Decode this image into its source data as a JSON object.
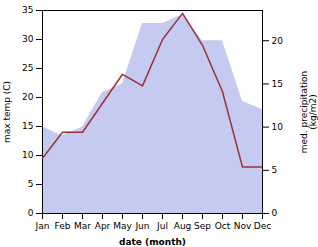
{
  "chart_data": {
    "type": "line",
    "xlabel": "date (month)",
    "ylabel": "max temp (C)",
    "y2label": "med. precipitation\n(kg/m2)",
    "categories": [
      "Jan",
      "Feb",
      "Mar",
      "Apr",
      "May",
      "Jun",
      "Jul",
      "Aug",
      "Sep",
      "Oct",
      "Nov",
      "Dec"
    ],
    "series": [
      {
        "type": "area",
        "axis": "y2",
        "color": "#c5caf0",
        "values": [
          10.0,
          9.0,
          10.0,
          14.0,
          15.0,
          22.0,
          22.0,
          23.0,
          20.0,
          20.0,
          13.0,
          12.0
        ]
      },
      {
        "type": "line",
        "color": "#993333",
        "values": [
          9.5,
          14.0,
          14.0,
          19.0,
          24.0,
          22.0,
          30.0,
          34.5,
          29.0,
          21.0,
          8.0,
          8.0
        ]
      }
    ],
    "ylim": [
      0,
      35
    ],
    "yticks": [
      0,
      5,
      10,
      15,
      20,
      25,
      30,
      35
    ],
    "y2lim": [
      0,
      23.5
    ],
    "y2ticks": [
      0,
      5,
      10,
      15,
      20
    ]
  }
}
